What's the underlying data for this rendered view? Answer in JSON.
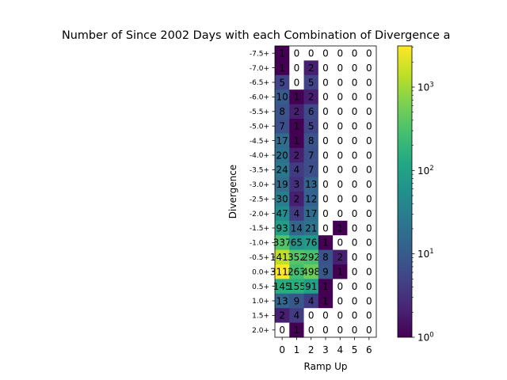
{
  "chart_data": {
    "type": "heatmap",
    "title": "Number of Since 2002 Days with each Combination of Divergence a",
    "xlabel": "Ramp Up",
    "ylabel": "Divergence",
    "x_categories": [
      "0",
      "1",
      "2",
      "3",
      "4",
      "5",
      "6"
    ],
    "y_categories": [
      "-7.5+",
      "-7.0+",
      "-6.5+",
      "-6.0+",
      "-5.5+",
      "-5.0+",
      "-4.5+",
      "-4.0+",
      "-3.5+",
      "-3.0+",
      "-2.5+",
      "-2.0+",
      "-1.5+",
      "-1.0+",
      "-0.5+",
      "0.0+",
      "0.5+",
      "1.0+",
      "1.5+",
      "2.0+"
    ],
    "values": [
      [
        1,
        0,
        0,
        0,
        0,
        0,
        0
      ],
      [
        1,
        0,
        2,
        0,
        0,
        0,
        0
      ],
      [
        5,
        0,
        5,
        0,
        0,
        0,
        0
      ],
      [
        10,
        1,
        2,
        0,
        0,
        0,
        0
      ],
      [
        8,
        2,
        6,
        0,
        0,
        0,
        0
      ],
      [
        7,
        1,
        5,
        0,
        0,
        0,
        0
      ],
      [
        17,
        1,
        8,
        0,
        0,
        0,
        0
      ],
      [
        20,
        2,
        7,
        0,
        0,
        0,
        0
      ],
      [
        24,
        4,
        7,
        0,
        0,
        0,
        0
      ],
      [
        19,
        3,
        13,
        0,
        0,
        0,
        0
      ],
      [
        30,
        2,
        12,
        0,
        0,
        0,
        0
      ],
      [
        47,
        4,
        17,
        0,
        0,
        0,
        0
      ],
      [
        93,
        14,
        21,
        0,
        1,
        0,
        0
      ],
      [
        337,
        65,
        76,
        1,
        0,
        0,
        0
      ],
      [
        1413,
        352,
        292,
        8,
        2,
        0,
        0
      ],
      [
        3116,
        263,
        498,
        9,
        1,
        0,
        0
      ],
      [
        145,
        155,
        91,
        1,
        0,
        0,
        0
      ],
      [
        13,
        9,
        4,
        1,
        0,
        0,
        0
      ],
      [
        2,
        4,
        0,
        0,
        0,
        0,
        0
      ],
      [
        0,
        1,
        0,
        0,
        0,
        0,
        0
      ]
    ],
    "colorscale": "viridis",
    "color_scale_type": "log",
    "colorbar_range": [
      1,
      3116
    ],
    "colorbar_ticks": [
      {
        "value": 1,
        "base": "10",
        "exp": "0"
      },
      {
        "value": 10,
        "base": "10",
        "exp": "1"
      },
      {
        "value": 100,
        "base": "10",
        "exp": "2"
      },
      {
        "value": 1000,
        "base": "10",
        "exp": "3"
      }
    ],
    "zero_cells_color": "#ffffff"
  }
}
